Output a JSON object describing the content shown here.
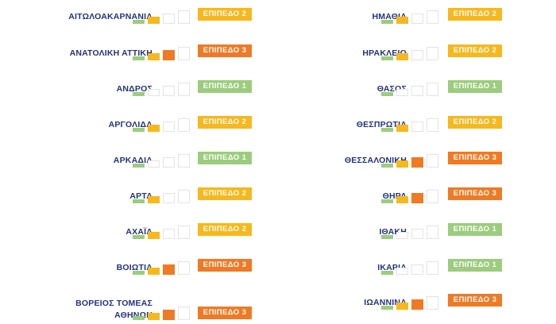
{
  "colors": {
    "level1": "#9ccc7e",
    "level2": "#f6b81d",
    "level3": "#f07a24",
    "empty": "#ffffff",
    "name": "#23337a"
  },
  "left": [
    {
      "name": "ΑΙΤΩΛΟΑΚΑΡΝΑΝΙΑ",
      "level": 2,
      "badge": "ΕΠΙΠΕΔΟ 2"
    },
    {
      "name": "ΑΝΑΤΟΛΙΚΗ ΑΤΤΙΚΗ",
      "level": 3,
      "badge": "ΕΠΙΠΕΔΟ 3"
    },
    {
      "name": "ΑΝΔΡΟΣ",
      "level": 1,
      "badge": "ΕΠΙΠΕΔΟ 1"
    },
    {
      "name": "ΑΡΓΟΛΙΔΑ",
      "level": 2,
      "badge": "ΕΠΙΠΕΔΟ 2"
    },
    {
      "name": "ΑΡΚΑΔΙΑ",
      "level": 1,
      "badge": "ΕΠΙΠΕΔΟ 1"
    },
    {
      "name": "ΑΡΤΑ",
      "level": 2,
      "badge": "ΕΠΙΠΕΔΟ 2"
    },
    {
      "name": "ΑΧΑΪΑ",
      "level": 2,
      "badge": "ΕΠΙΠΕΔΟ 2"
    },
    {
      "name": "ΒΟΙΩΤΙΑ",
      "level": 3,
      "badge": "ΕΠΙΠΕΔΟ 3"
    },
    {
      "name": "ΒΟΡΕΙΟΣ ΤΟΜΕΑΣ\nΑΘΗΝΩΝ",
      "level": 3,
      "badge": "ΕΠΙΠΕΔΟ 3"
    }
  ],
  "right": [
    {
      "name": "ΗΜΑΘΙΑ",
      "level": 2,
      "badge": "ΕΠΙΠΕΔΟ 2"
    },
    {
      "name": "ΗΡΑΚΛΕΙΟ",
      "level": 2,
      "badge": "ΕΠΙΠΕΔΟ 2"
    },
    {
      "name": "ΘΑΣΟΣ",
      "level": 1,
      "badge": "ΕΠΙΠΕΔΟ 1"
    },
    {
      "name": "ΘΕΣΠΡΩΤΙΑ",
      "level": 2,
      "badge": "ΕΠΙΠΕΔΟ 2"
    },
    {
      "name": "ΘΕΣΣΑΛΟΝΙΚΗ",
      "level": 3,
      "badge": "ΕΠΙΠΕΔΟ 3"
    },
    {
      "name": "ΘΗΡΑ",
      "level": 3,
      "badge": "ΕΠΙΠΕΔΟ 3"
    },
    {
      "name": "ΙΘΑΚΗ",
      "level": 1,
      "badge": "ΕΠΙΠΕΔΟ 1"
    },
    {
      "name": "ΙΚΑΡΙΑ",
      "level": 1,
      "badge": "ΕΠΙΠΕΔΟ 1"
    },
    {
      "name": "ΙΩΑΝΝΙΝΑ",
      "level": 3,
      "badge": "ΕΠΙΠΕΔΟ 3"
    }
  ]
}
